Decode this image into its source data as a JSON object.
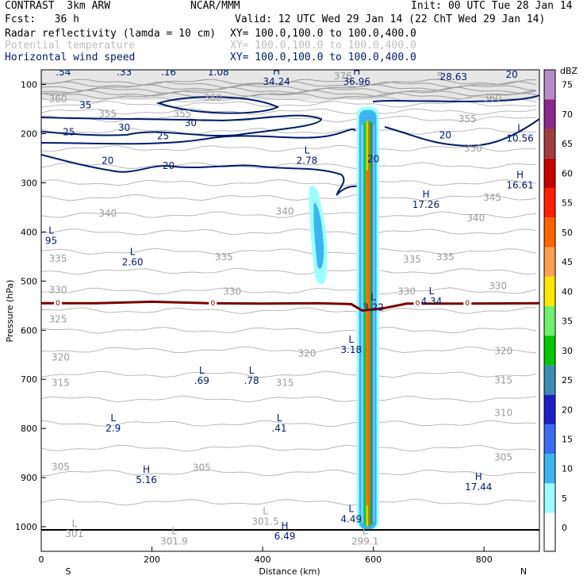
{
  "header": {
    "model": "CONTRAST  3km ARW",
    "org": "NCAR/MMM",
    "init": "Init: 00 UTC Tue 28 Jan 14",
    "fcst": "Fcst:   36 h",
    "valid": "Valid: 12 UTC Wed 29 Jan 14 (22 ChT Wed 29 Jan 14)",
    "fields": [
      {
        "name": "Radar reflectivity (lamda = 10 cm)",
        "xy": "XY= 100.0,100.0 to 100.0,400.0",
        "color": "#000000"
      },
      {
        "name": "Potential temperature",
        "xy": "XY= 100.0,100.0 to 100.0,400.0",
        "color": "#bdbdbd"
      },
      {
        "name": "Horizontal wind speed",
        "xy": "XY= 100.0,100.0 to 100.0,400.0",
        "color": "#001a6e"
      }
    ]
  },
  "chart_data": {
    "type": "cross-section",
    "xlabel": "Distance (km)",
    "ylabel": "Pressure (hPa)",
    "xlim": [
      0,
      900
    ],
    "ylim": [
      1050,
      70
    ],
    "xticks": [
      0,
      200,
      400,
      600,
      800
    ],
    "yticks": [
      100,
      200,
      300,
      400,
      500,
      600,
      700,
      800,
      900,
      1000
    ],
    "left_label": "S",
    "right_label": "N",
    "colorbar": {
      "unit": "dBZ",
      "levels": [
        "0",
        "5",
        "10",
        "15",
        "20",
        "25",
        "30",
        "35",
        "40",
        "45",
        "50",
        "55",
        "60",
        "65",
        "70",
        "75"
      ],
      "colors": [
        "#ffffff",
        "#9cffff",
        "#3cb4f0",
        "#3c6cf0",
        "#1e1ec8",
        "#3c8cb4",
        "#00c800",
        "#6ef06e",
        "#ffe600",
        "#ffa050",
        "#ff6400",
        "#ff1e00",
        "#c80000",
        "#a03c3c",
        "#8c288c",
        "#b48cc8"
      ]
    },
    "theta_labels": [
      {
        "text": "360",
        "x": 30,
        "p": 130
      },
      {
        "text": "360",
        "x": 310,
        "p": 127
      },
      {
        "text": "360",
        "x": 815,
        "p": 127
      },
      {
        "text": "355",
        "x": 120,
        "p": 160
      },
      {
        "text": "355",
        "x": 255,
        "p": 160
      },
      {
        "text": "355",
        "x": 770,
        "p": 170
      },
      {
        "text": "350",
        "x": 780,
        "p": 230
      },
      {
        "text": "345",
        "x": 815,
        "p": 330
      },
      {
        "text": "340",
        "x": 120,
        "p": 362
      },
      {
        "text": "340",
        "x": 440,
        "p": 358
      },
      {
        "text": "340",
        "x": 785,
        "p": 372
      },
      {
        "text": "335",
        "x": 30,
        "p": 454
      },
      {
        "text": "335",
        "x": 330,
        "p": 451
      },
      {
        "text": "335",
        "x": 670,
        "p": 456
      },
      {
        "text": "335",
        "x": 730,
        "p": 451
      },
      {
        "text": "330",
        "x": 30,
        "p": 518
      },
      {
        "text": "330",
        "x": 345,
        "p": 521
      },
      {
        "text": "330",
        "x": 660,
        "p": 521
      },
      {
        "text": "330",
        "x": 825,
        "p": 510
      },
      {
        "text": "325",
        "x": 30,
        "p": 578
      },
      {
        "text": "320",
        "x": 35,
        "p": 655
      },
      {
        "text": "320",
        "x": 480,
        "p": 647
      },
      {
        "text": "320",
        "x": 835,
        "p": 642
      },
      {
        "text": "315",
        "x": 35,
        "p": 707
      },
      {
        "text": "315",
        "x": 440,
        "p": 707
      },
      {
        "text": "315",
        "x": 835,
        "p": 702
      },
      {
        "text": "310",
        "x": 835,
        "p": 768
      },
      {
        "text": "305",
        "x": 35,
        "p": 878
      },
      {
        "text": "305",
        "x": 290,
        "p": 880
      },
      {
        "text": "305",
        "x": 835,
        "p": 859
      },
      {
        "text": "376",
        "x": 545,
        "p": 83
      },
      {
        "text": "5",
        "x": 720,
        "p": 83
      }
    ],
    "wind_labels": [
      {
        "text": "35",
        "x": 80,
        "p": 142
      },
      {
        "text": "30",
        "x": 150,
        "p": 188
      },
      {
        "text": "30",
        "x": 270,
        "p": 178
      },
      {
        "text": "25",
        "x": 50,
        "p": 197
      },
      {
        "text": "25",
        "x": 220,
        "p": 205
      },
      {
        "text": "20",
        "x": 120,
        "p": 255
      },
      {
        "text": "20",
        "x": 230,
        "p": 265
      },
      {
        "text": "20",
        "x": 600,
        "p": 252
      },
      {
        "text": "20",
        "x": 730,
        "p": 203
      },
      {
        "text": "20",
        "x": 850,
        "p": 80
      }
    ],
    "extrema": [
      {
        "type": "L",
        "value": ".54",
        "x": 40,
        "p": 60,
        "color": "navy"
      },
      {
        "type": "L",
        "value": ".33",
        "x": 150,
        "p": 60,
        "color": "navy"
      },
      {
        "type": "L",
        "value": ".16",
        "x": 230,
        "p": 60,
        "color": "navy"
      },
      {
        "type": "L",
        "value": "1.08",
        "x": 320,
        "p": 60,
        "color": "navy"
      },
      {
        "type": "H",
        "value": "34.24",
        "x": 425,
        "p": 80,
        "color": "navy"
      },
      {
        "type": "H",
        "value": "36.96",
        "x": 570,
        "p": 80,
        "color": "navy"
      },
      {
        "type": "H",
        "value": "28.63",
        "x": 745,
        "p": 70,
        "color": "navy"
      },
      {
        "type": "L",
        "value": "2.78",
        "x": 480,
        "p": 240,
        "color": "navy"
      },
      {
        "type": "L",
        "value": "10.56",
        "x": 865,
        "p": 195,
        "color": "navy"
      },
      {
        "type": "H",
        "value": "16.61",
        "x": 865,
        "p": 290,
        "color": "navy"
      },
      {
        "type": "H",
        "value": "17.26",
        "x": 695,
        "p": 330,
        "color": "navy"
      },
      {
        "type": "L",
        "value": "95",
        "x": 18,
        "p": 403,
        "color": "navy"
      },
      {
        "type": "L",
        "value": "2.60",
        "x": 165,
        "p": 447,
        "color": "navy"
      },
      {
        "type": "L",
        "value": "3.22",
        "x": 600,
        "p": 539,
        "color": "navy"
      },
      {
        "type": "L",
        "value": "4.34",
        "x": 705,
        "p": 527,
        "color": "navy"
      },
      {
        "type": "L",
        "value": "3.18",
        "x": 560,
        "p": 625,
        "color": "navy"
      },
      {
        "type": "L",
        "value": ".69",
        "x": 290,
        "p": 688,
        "color": "navy"
      },
      {
        "type": "L",
        "value": ".78",
        "x": 380,
        "p": 688,
        "color": "navy"
      },
      {
        "type": "L",
        "value": "2.9",
        "x": 130,
        "p": 785,
        "color": "navy"
      },
      {
        "type": "L",
        "value": ".41",
        "x": 430,
        "p": 785,
        "color": "navy"
      },
      {
        "type": "H",
        "value": "5.16",
        "x": 190,
        "p": 890,
        "color": "navy"
      },
      {
        "type": "H",
        "value": "17.44",
        "x": 790,
        "p": 905,
        "color": "navy"
      },
      {
        "type": "L",
        "value": "4.49",
        "x": 560,
        "p": 970,
        "color": "navy"
      },
      {
        "type": "H",
        "value": "6.49",
        "x": 440,
        "p": 1005,
        "color": "navy"
      },
      {
        "type": "L",
        "value": "301",
        "x": 60,
        "p": 1000,
        "color": "gray"
      },
      {
        "type": "L",
        "value": "301.5",
        "x": 405,
        "p": 975,
        "color": "gray"
      },
      {
        "type": "L",
        "value": "301.9",
        "x": 240,
        "p": 1015,
        "color": "gray"
      },
      {
        "type": "L",
        "value": "299.1",
        "x": 585,
        "p": 1015,
        "color": "gray"
      }
    ],
    "freezing_level": {
      "label": "0",
      "color": "#7a0000",
      "label_positions": [
        30,
        310,
        680,
        770
      ],
      "points": [
        [
          0,
          545
        ],
        [
          100,
          545
        ],
        [
          200,
          542
        ],
        [
          300,
          545
        ],
        [
          400,
          546
        ],
        [
          500,
          545
        ],
        [
          560,
          547
        ],
        [
          580,
          560
        ],
        [
          620,
          555
        ],
        [
          660,
          546
        ],
        [
          760,
          546
        ],
        [
          900,
          545
        ]
      ]
    },
    "cell": {
      "center_x": 590,
      "top_p": 145,
      "bottom_p": 1005
    }
  }
}
